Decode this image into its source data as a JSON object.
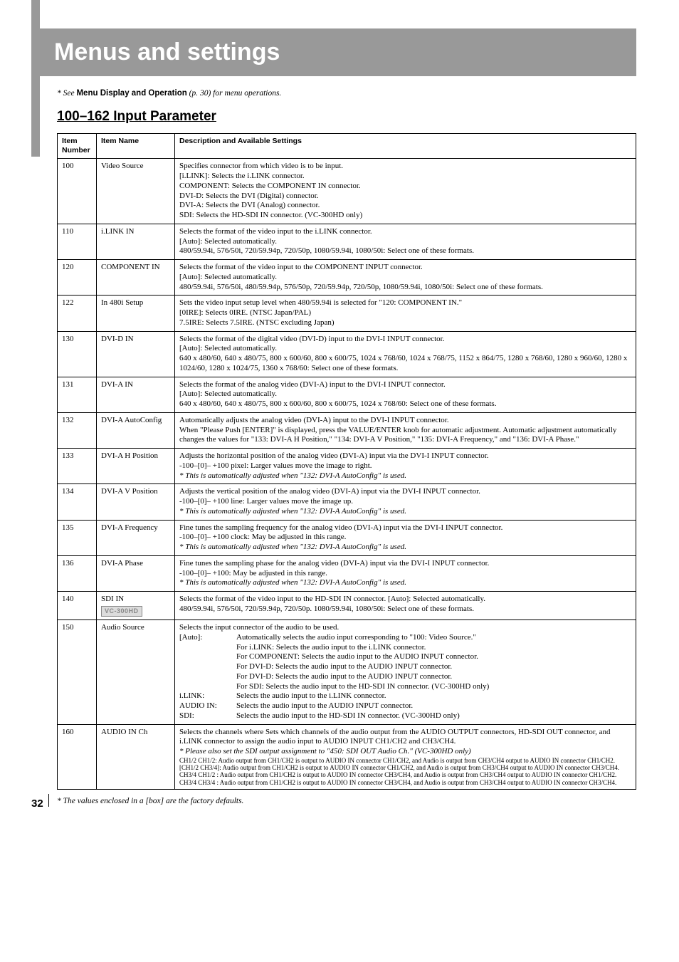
{
  "page": {
    "title": "Menus and settings",
    "topnote_prefix": "* See ",
    "topnote_bold": "Menu Display and Operation",
    "topnote_suffix": " (p. 30) for menu operations.",
    "section_heading": "100–162 Input Parameter",
    "footnote": "* The values enclosed in a [box] are the factory defaults.",
    "page_number": "32"
  },
  "headers": {
    "col1": "Item Number",
    "col2": "Item Name",
    "col3": "Description and Available Settings"
  },
  "rows": {
    "r100": {
      "num": "100",
      "name": "Video Source",
      "lines": [
        "Specifies connector from which video is to be input.",
        "[i.LINK]: Selects the i.LINK connector.",
        "COMPONENT: Selects the COMPONENT IN connector.",
        "DVI-D: Selects the DVI (Digital) connector.",
        "DVI-A: Selects the DVI (Analog) connector.",
        "SDI: Selects the HD-SDI IN connector. (VC-300HD only)"
      ]
    },
    "r110": {
      "num": "110",
      "name": "i.LINK IN",
      "lines": [
        "Selects the format of the video input to the i.LINK connector.",
        "[Auto]: Selected automatically.",
        "480/59.94i, 576/50i, 720/59.94p, 720/50p, 1080/59.94i, 1080/50i: Select one of these formats."
      ]
    },
    "r120": {
      "num": "120",
      "name": "COMPONENT IN",
      "lines": [
        "Selects the format of the video input to the COMPONENT INPUT connector.",
        "[Auto]: Selected automatically.",
        "480/59.94i, 576/50i, 480/59.94p, 576/50p, 720/59.94p, 720/50p, 1080/59.94i, 1080/50i: Select one of these formats."
      ]
    },
    "r122": {
      "num": "122",
      "name": "In 480i Setup",
      "lines": [
        "Sets the video input setup level when 480/59.94i is selected for \"120: COMPONENT IN.\"",
        "[0IRE]: Selects 0IRE. (NTSC Japan/PAL)",
        "7.5IRE: Selects 7.5IRE. (NTSC excluding Japan)"
      ]
    },
    "r130": {
      "num": "130",
      "name": "DVI-D IN",
      "lines": [
        "Selects the format of the digital video (DVI-D) input to the DVI-I INPUT connector.",
        "[Auto]: Selected automatically.",
        "640 x 480/60, 640 x 480/75, 800 x 600/60, 800 x 600/75, 1024 x 768/60, 1024 x 768/75, 1152 x 864/75, 1280 x 768/60, 1280 x 960/60, 1280 x 1024/60, 1280 x 1024/75, 1360 x 768/60: Select one of these formats."
      ]
    },
    "r131": {
      "num": "131",
      "name": "DVI-A IN",
      "lines": [
        "Selects the format of the analog video (DVI-A) input to the DVI-I INPUT connector.",
        "[Auto]: Selected automatically.",
        "640 x 480/60, 640 x 480/75, 800 x 600/60, 800 x 600/75, 1024 x 768/60: Select one of these formats."
      ]
    },
    "r132": {
      "num": "132",
      "name": "DVI-A AutoConfig",
      "lines": [
        "Automatically adjusts the analog video (DVI-A) input to the DVI-I INPUT connector.",
        "When \"Please Push [ENTER]\" is displayed, press the VALUE/ENTER knob for automatic adjustment. Automatic adjustment automatically changes the values for \"133: DVI-A H Position,\" \"134: DVI-A V Position,\" \"135: DVI-A Frequency,\" and \"136: DVI-A Phase.\""
      ]
    },
    "r133": {
      "num": "133",
      "name": "DVI-A H Position",
      "l1": "Adjusts the horizontal position of the analog video (DVI-A) input via the DVI-I INPUT connector.",
      "l2": "-100–[0]– +100 pixel: Larger values move the image to right.",
      "l3": "*  This is automatically adjusted when \"132: DVI-A AutoConfig\" is used."
    },
    "r134": {
      "num": "134",
      "name": "DVI-A V Position",
      "l1": "Adjusts the vertical position of the analog video (DVI-A) input via the DVI-I INPUT connector.",
      "l2": "-100–[0]– +100 line: Larger values move the image up.",
      "l3": "*  This is automatically adjusted when \"132: DVI-A AutoConfig\" is used."
    },
    "r135": {
      "num": "135",
      "name": "DVI-A Frequency",
      "l1": "Fine tunes the sampling frequency for the analog video (DVI-A) input via the DVI-I INPUT connector.",
      "l2": "-100–[0]– +100 clock: May be adjusted in this range.",
      "l3": "*  This is automatically adjusted when \"132: DVI-A AutoConfig\" is used."
    },
    "r136": {
      "num": "136",
      "name": "DVI-A Phase",
      "l1": "Fine tunes the sampling phase for the analog video (DVI-A) input via the DVI-I INPUT connector.",
      "l2": "-100–[0]– +100: May be adjusted in this range.",
      "l3": "*  This is automatically adjusted when \"132: DVI-A AutoConfig\" is used."
    },
    "r140": {
      "num": "140",
      "name": "SDI IN",
      "badge": "VC-300HD",
      "lines": [
        "Selects the format of the video input to the HD-SDI IN connector. [Auto]: Selected automatically.",
        "480/59.94i, 576/50i, 720/59.94p, 720/50p. 1080/59.94i, 1080/50i: Select one of these formats."
      ]
    },
    "r150": {
      "num": "150",
      "name": "Audio Source",
      "intro": "Selects the input connector of the audio to be used.",
      "defs": [
        {
          "k": "[Auto]:",
          "v": "Automatically selects the audio input corresponding to \"100: Video Source.\""
        },
        {
          "k": "",
          "v": "For i.LINK: Selects the audio input to the i.LINK connector."
        },
        {
          "k": "",
          "v": "For COMPONENT: Selects the audio input to the AUDIO INPUT connector."
        },
        {
          "k": "",
          "v": "For DVI-D: Selects the audio input to the AUDIO INPUT connector."
        },
        {
          "k": "",
          "v": "For DVI-D: Selects the audio input to the AUDIO INPUT connector."
        },
        {
          "k": "",
          "v": "For SDI: Selects the audio input to the HD-SDI IN connector. (VC-300HD only)"
        },
        {
          "k": "i.LINK:",
          "v": "Selects the audio input to the i.LINK connector."
        },
        {
          "k": "AUDIO IN:",
          "v": "Selects the audio input to the AUDIO INPUT connector."
        },
        {
          "k": "SDI:",
          "v": "Selects the audio input to the HD-SDI IN connector. (VC-300HD only)"
        }
      ]
    },
    "r160": {
      "num": "160",
      "name": "AUDIO IN Ch",
      "l1": "Selects the channels where Sets which channels of the audio output from the AUDIO OUTPUT connectors, HD-SDI OUT connector, and i.LINK connector to assign the audio input to AUDIO INPUT CH1/CH2 and CH3/CH4.",
      "l2": "*  Please also set the SDI output assignment to \"450: SDI OUT Audio Ch.\" (VC-300HD only)",
      "tiny": [
        "CH1/2 CH1/2: Audio output from CH1/CH2 is output to AUDIO IN connector CH1/CH2, and Audio is output from CH3/CH4 output to AUDIO IN connector CH1/CH2.",
        "[CH1/2 CH3/4]: Audio output from CH1/CH2 is output to AUDIO IN connector CH1/CH2, and Audio is output from CH3/CH4 output to AUDIO IN connector CH3/CH4.",
        "CH3/4 CH1/2 : Audio output from CH1/CH2 is output to AUDIO IN connector CH3/CH4, and Audio is output from CH3/CH4 output to AUDIO IN connector CH1/CH2.",
        "CH3/4 CH3/4 : Audio output from CH1/CH2 is output to AUDIO IN connector CH3/CH4, and Audio is output from CH3/CH4 output to AUDIO IN connector CH3/CH4."
      ]
    }
  }
}
